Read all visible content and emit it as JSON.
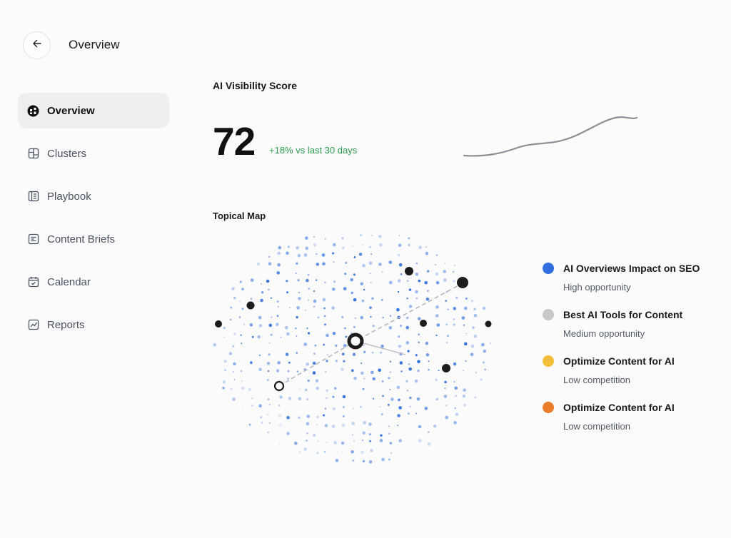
{
  "header": {
    "back_icon": "arrow-left-icon",
    "title": "Overview"
  },
  "sidebar": {
    "items": [
      {
        "label": "Overview",
        "icon": "overview-icon",
        "active": true
      },
      {
        "label": "Clusters",
        "icon": "clusters-icon",
        "active": false
      },
      {
        "label": "Playbook",
        "icon": "playbook-icon",
        "active": false
      },
      {
        "label": "Content Briefs",
        "icon": "content-briefs-icon",
        "active": false
      },
      {
        "label": "Calendar",
        "icon": "calendar-icon",
        "active": false
      },
      {
        "label": "Reports",
        "icon": "reports-icon",
        "active": false
      }
    ]
  },
  "visibility": {
    "title": "AI Visibility Score",
    "score": "72",
    "delta": "+18% vs last 30 days",
    "delta_color": "#2e9b4d",
    "trend_color": "#8d8f96"
  },
  "topical_map": {
    "title": "Topical Map",
    "dot_color": "#2f6fe0",
    "node_color": "#1c1c1c"
  },
  "legend": {
    "items": [
      {
        "label": "AI Overviews Impact on SEO",
        "sub": "High opportunity",
        "color": "#2f6fe0"
      },
      {
        "label": "Best AI Tools for Content",
        "sub": "Medium opportunity",
        "color": "#c9c9cb"
      },
      {
        "label": "Optimize Content for AI",
        "sub": "Low competition",
        "color": "#f2be3a"
      },
      {
        "label": "Optimize Content for AI",
        "sub": "Low competition",
        "color": "#ea7b2c"
      }
    ]
  }
}
